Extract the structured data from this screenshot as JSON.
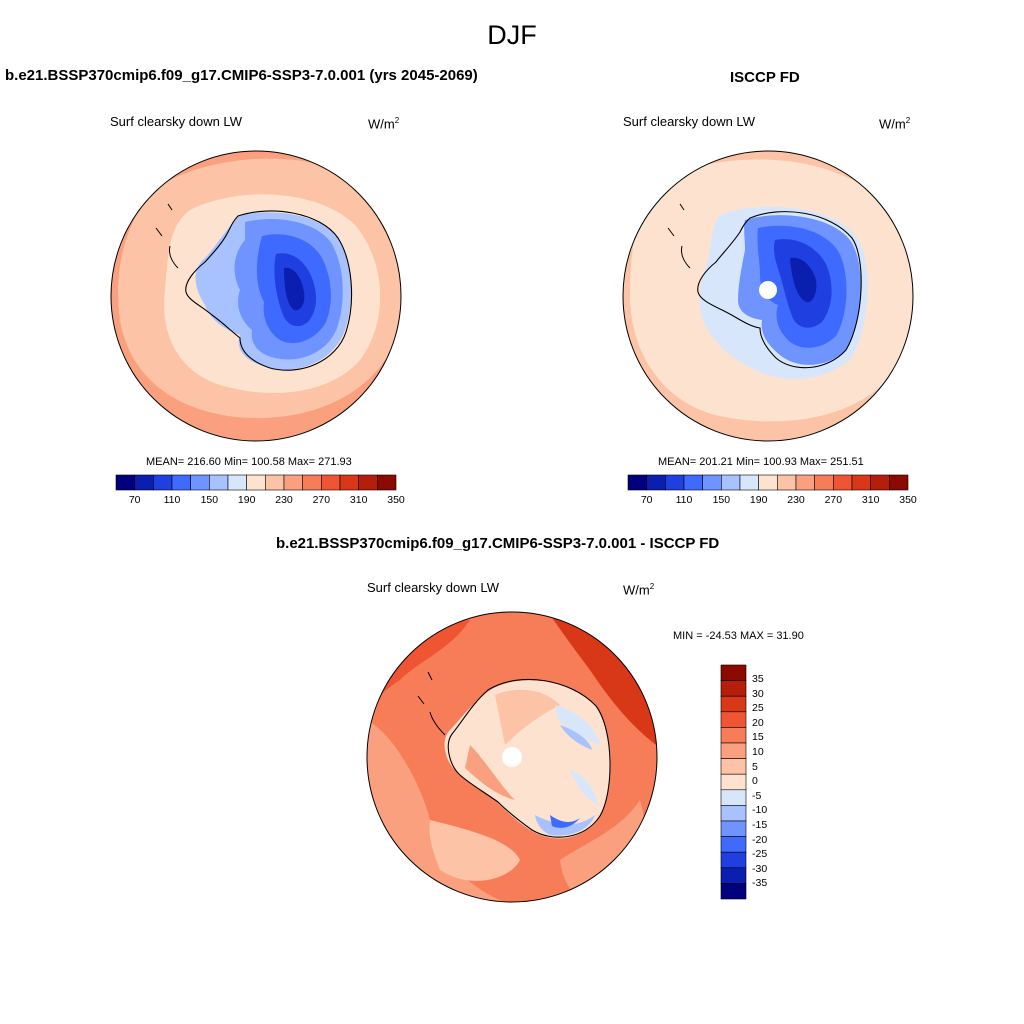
{
  "figure": {
    "season": "DJF",
    "left_title": "b.e21.BSSP370cmip6.f09_g17.CMIP6-SSP3-7.0.001 (yrs 2045-2069)",
    "right_title": "ISCCP FD",
    "diff_title": "b.e21.BSSP370cmip6.f09_g17.CMIP6-SSP3-7.0.001 - ISCCP FD"
  },
  "panels": {
    "model": {
      "variable": "Surf clearsky down LW",
      "units": "W/m",
      "units_sup": "2",
      "stats": "MEAN= 216.60  Min= 100.58  Max= 271.93"
    },
    "obs": {
      "variable": "Surf clearsky down LW",
      "units": "W/m",
      "units_sup": "2",
      "stats": "MEAN= 201.21  Min= 100.93  Max= 251.51"
    },
    "diff": {
      "variable": "Surf clearsky down LW",
      "units": "W/m",
      "units_sup": "2",
      "stats": "MIN = -24.53 MAX =  31.90"
    }
  },
  "colorbars": {
    "abs_labels": [
      "70",
      "110",
      "150",
      "190",
      "230",
      "270",
      "310",
      "350"
    ],
    "abs_colors": [
      "#00007f",
      "#0a1fb0",
      "#1f3fe0",
      "#3f6aff",
      "#6f94ff",
      "#a8c2ff",
      "#d8e6fb",
      "#fde3cf",
      "#fcc3a6",
      "#fba07f",
      "#f77d58",
      "#ef5533",
      "#d83818",
      "#b51e08",
      "#8a0a00"
    ],
    "diff_labels": [
      "35",
      "30",
      "25",
      "20",
      "15",
      "10",
      "5",
      "0",
      "-5",
      "-10",
      "-15",
      "-20",
      "-25",
      "-30",
      "-35"
    ],
    "diff_colors": [
      "#8a0a00",
      "#b51e08",
      "#d83818",
      "#ef5533",
      "#f77d58",
      "#fba07f",
      "#fcc3a6",
      "#fde3cf",
      "#d8e6fb",
      "#a8c2ff",
      "#6f94ff",
      "#3f6aff",
      "#1f3fe0",
      "#0a1fb0",
      "#00007f"
    ]
  }
}
